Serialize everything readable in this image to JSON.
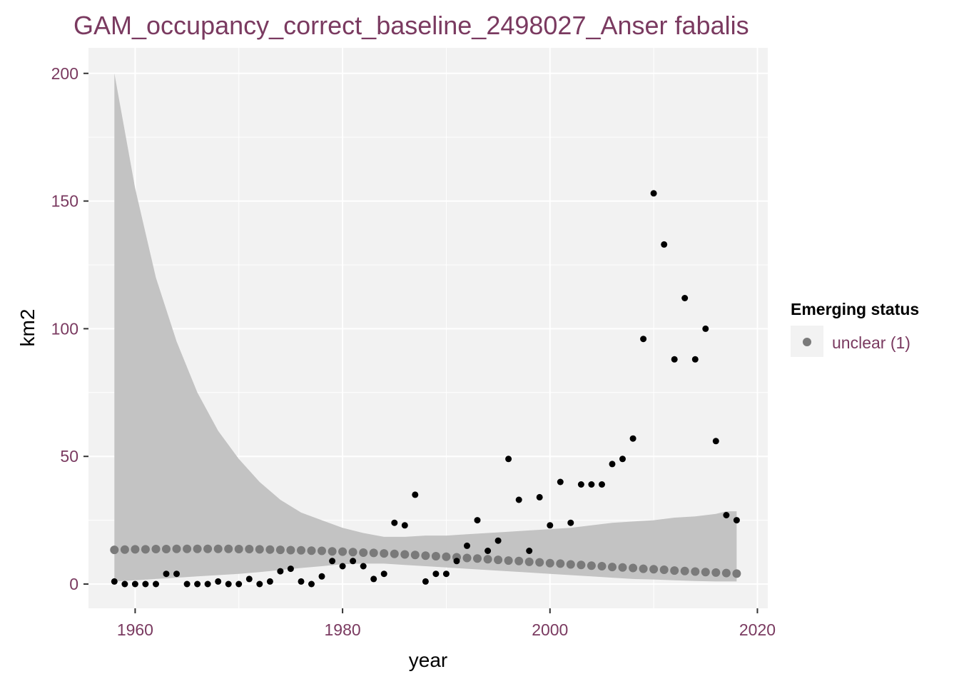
{
  "chart_data": {
    "type": "scatter",
    "title": "GAM_occupancy_correct_baseline_2498027_Anser fabalis",
    "xlabel": "year",
    "ylabel": "km2",
    "xlim": [
      1955.5,
      2021
    ],
    "ylim": [
      -9.5,
      210
    ],
    "x_ticks": [
      1960,
      1980,
      2000,
      2020
    ],
    "x_tick_labels": [
      "1960",
      "1980",
      "2000",
      "2020"
    ],
    "y_ticks": [
      0,
      50,
      100,
      150,
      200
    ],
    "y_tick_labels": [
      "0",
      "50",
      "100",
      "150",
      "200"
    ],
    "grid": true,
    "legend": {
      "title": "Emerging status",
      "entries": [
        "unclear (1)"
      ],
      "placement": "right"
    },
    "colors": {
      "panel_background": "#f2f2f2",
      "grid": "#ffffff",
      "ribbon": "#c3c3c3",
      "observed_points": "#000000",
      "fitted_points": "#7a7a7a",
      "title_text": "#7a3a60",
      "tick_text": "#7a3a60",
      "axis_title_text": "#000000"
    },
    "series": [
      {
        "kind": "observed",
        "x": [
          1958,
          1959,
          1960,
          1961,
          1962,
          1963,
          1964,
          1965,
          1966,
          1967,
          1968,
          1969,
          1970,
          1971,
          1972,
          1973,
          1974,
          1975,
          1976,
          1977,
          1978,
          1979,
          1980,
          1981,
          1982,
          1983,
          1984,
          1985,
          1986,
          1987,
          1988,
          1989,
          1990,
          1991,
          1992,
          1993,
          1994,
          1995,
          1996,
          1997,
          1998,
          1999,
          2000,
          2001,
          2002,
          2003,
          2004,
          2005,
          2006,
          2007,
          2008,
          2009,
          2010,
          2011,
          2012,
          2013,
          2014,
          2015,
          2016,
          2017,
          2018
        ],
        "y": [
          1,
          0,
          0,
          0,
          0,
          4,
          4,
          0,
          0,
          0,
          1,
          0,
          0,
          2,
          0,
          1,
          5,
          6,
          1,
          0,
          3,
          9,
          7,
          9,
          7,
          2,
          4,
          24,
          23,
          35,
          1,
          4,
          4,
          9,
          15,
          25,
          13,
          17,
          49,
          33,
          13,
          34,
          23,
          40,
          24,
          39,
          39,
          39,
          47,
          49,
          57,
          96,
          153,
          133,
          88,
          112,
          88,
          100,
          56,
          27,
          25
        ]
      },
      {
        "kind": "fitted",
        "name": "unclear (1)",
        "x": [
          1958,
          1959,
          1960,
          1961,
          1962,
          1963,
          1964,
          1965,
          1966,
          1967,
          1968,
          1969,
          1970,
          1971,
          1972,
          1973,
          1974,
          1975,
          1976,
          1977,
          1978,
          1979,
          1980,
          1981,
          1982,
          1983,
          1984,
          1985,
          1986,
          1987,
          1988,
          1989,
          1990,
          1991,
          1992,
          1993,
          1994,
          1995,
          1996,
          1997,
          1998,
          1999,
          2000,
          2001,
          2002,
          2003,
          2004,
          2005,
          2006,
          2007,
          2008,
          2009,
          2010,
          2011,
          2012,
          2013,
          2014,
          2015,
          2016,
          2017,
          2018
        ],
        "y": [
          13.4,
          13.5,
          13.6,
          13.6,
          13.7,
          13.7,
          13.8,
          13.8,
          13.8,
          13.8,
          13.8,
          13.8,
          13.7,
          13.7,
          13.6,
          13.5,
          13.4,
          13.3,
          13.2,
          13.1,
          13.0,
          12.8,
          12.7,
          12.5,
          12.3,
          12.2,
          12.0,
          11.8,
          11.6,
          11.4,
          11.1,
          10.9,
          10.7,
          10.5,
          10.2,
          10.0,
          9.7,
          9.5,
          9.2,
          9.0,
          8.7,
          8.5,
          8.2,
          8.0,
          7.7,
          7.5,
          7.2,
          7.0,
          6.7,
          6.5,
          6.3,
          6.0,
          5.8,
          5.6,
          5.3,
          5.1,
          4.9,
          4.7,
          4.5,
          4.3,
          4.1
        ]
      }
    ],
    "ribbon": {
      "x": [
        1958,
        1960,
        1962,
        1964,
        1966,
        1968,
        1970,
        1972,
        1974,
        1976,
        1978,
        1980,
        1982,
        1984,
        1986,
        1988,
        1990,
        1992,
        1994,
        1996,
        1998,
        2000,
        2002,
        2004,
        2006,
        2008,
        2010,
        2012,
        2014,
        2016,
        2017,
        2018
      ],
      "lower": [
        1,
        1.5,
        2,
        2.5,
        3,
        3.5,
        4,
        4.7,
        5.5,
        6.3,
        7,
        7.8,
        8,
        8,
        7.5,
        7,
        6.5,
        6,
        5.5,
        5,
        4.5,
        4,
        3.5,
        3,
        2.5,
        2,
        1.8,
        1.5,
        1.2,
        1,
        1,
        1
      ],
      "upper": [
        200,
        155,
        120,
        95,
        75,
        60,
        49,
        40,
        33,
        28,
        25,
        22,
        20,
        18.5,
        18.5,
        19,
        19,
        19.5,
        20,
        20.5,
        21,
        21.5,
        22,
        23,
        24,
        24.5,
        25,
        26,
        26.5,
        27.5,
        28.5,
        28.5
      ]
    }
  }
}
